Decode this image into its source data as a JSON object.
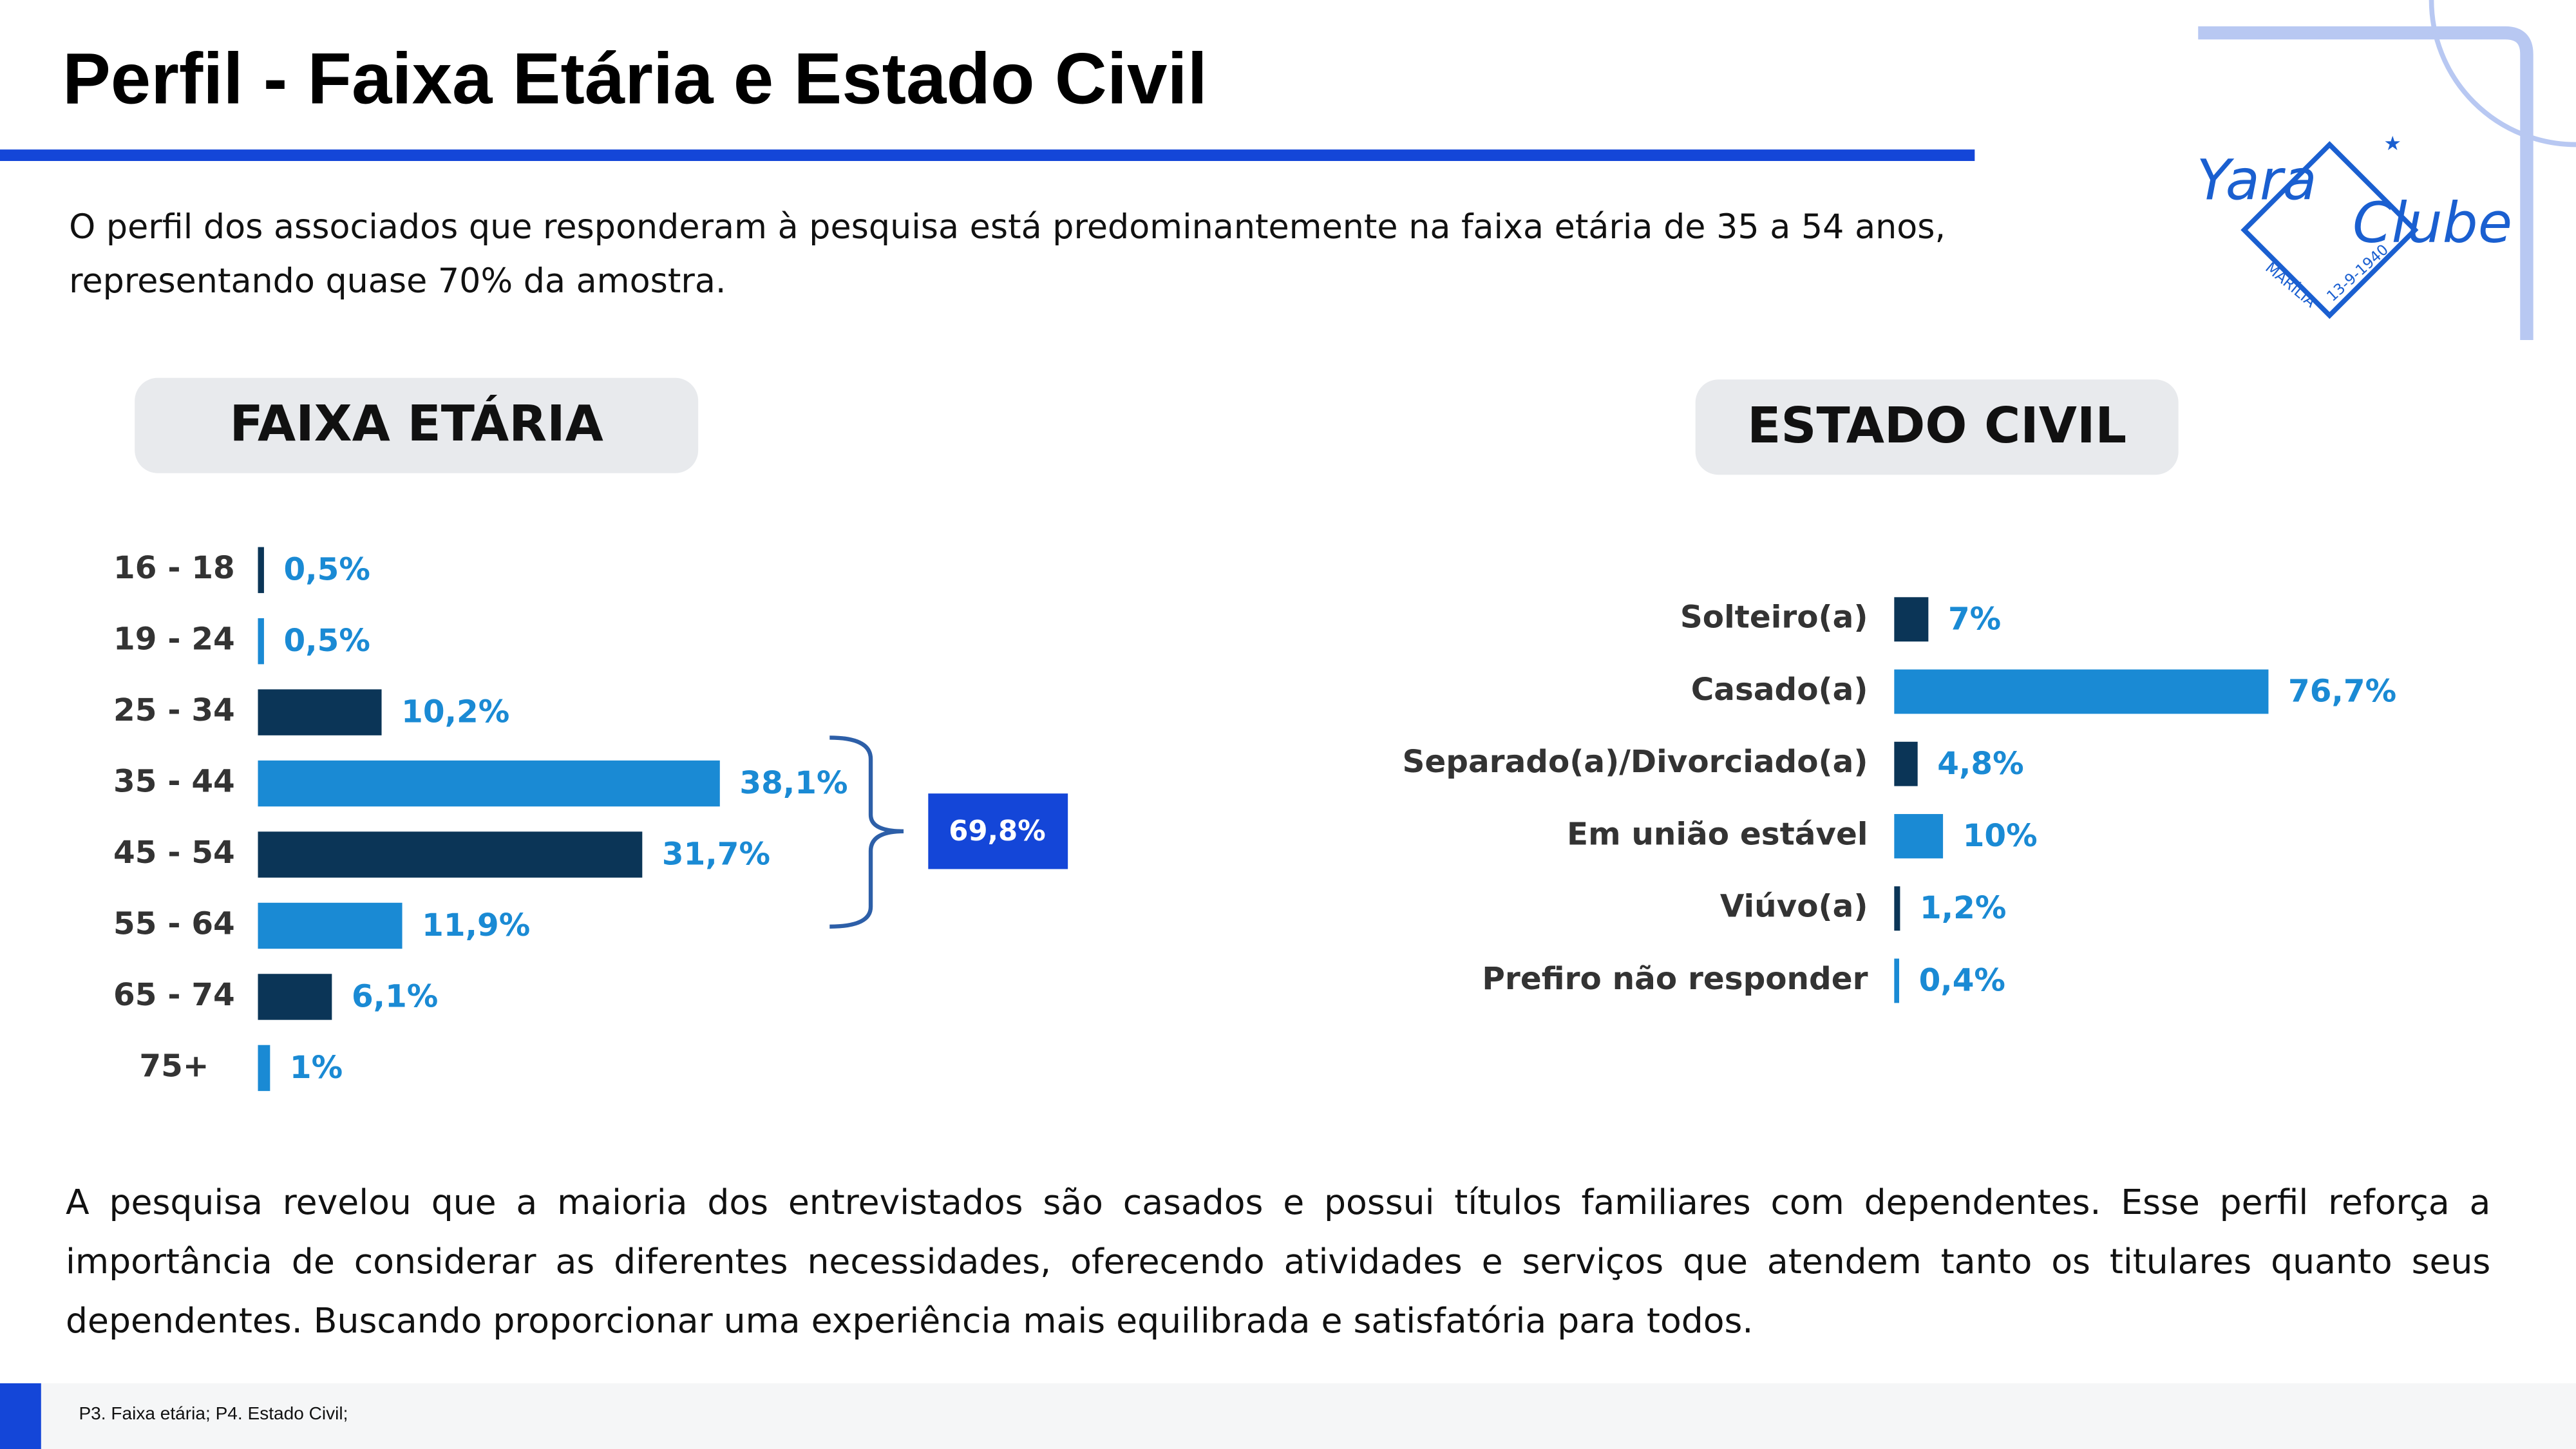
{
  "title": "Perfil - Faixa Etária e Estado Civil",
  "intro": "O perfil dos associados que responderam à pesquisa está predominantemente na faixa etária de 35 a 54 anos, representando quase 70% da amostra.",
  "conclusion": "A pesquisa revelou que a maioria dos entrevistados são casados e possui títulos familiares com dependentes. Esse perfil reforça a importância de considerar as diferentes necessidades, oferecendo atividades e serviços que atendem tanto os titulares quanto seus dependentes. Buscando proporcionar uma experiência mais equilibrada e satisfatória para todos.",
  "source": "P3. Faixa etária; P4. Estado Civil;",
  "logo": {
    "name_1": "Yara",
    "name_2": "Clube",
    "city": "MARÍLIA",
    "date": "13-9-1940"
  },
  "chart_data": [
    {
      "type": "hbar",
      "title": "FAIXA ETÁRIA",
      "categories": [
        "16 - 18",
        "19 - 24",
        "25 - 34",
        "35 - 44",
        "45 - 54",
        "55 - 64",
        "65 - 74",
        "75+"
      ],
      "values": [
        0.5,
        0.5,
        10.2,
        38.1,
        31.7,
        11.9,
        6.1,
        1
      ],
      "value_labels": [
        "0,5%",
        "0,5%",
        "10,2%",
        "38,1%",
        "31,7%",
        "11,9%",
        "6,1%",
        "1%"
      ],
      "colors": [
        "#0b3557",
        "#1a8ad4",
        "#0b3557",
        "#1a8ad4",
        "#0b3557",
        "#1a8ad4",
        "#0b3557",
        "#1a8ad4"
      ],
      "annotation": "69,8%"
    },
    {
      "type": "hbar",
      "title": "ESTADO CIVIL",
      "categories": [
        "Solteiro(a)",
        "Casado(a)",
        "Separado(a)/Divorciado(a)",
        "Em união estável",
        "Viúvo(a)",
        "Prefiro não responder"
      ],
      "values": [
        7,
        76.7,
        4.8,
        10,
        1.2,
        0.4
      ],
      "value_labels": [
        "7%",
        "76,7%",
        "4,8%",
        "10%",
        "1,2%",
        "0,4%"
      ],
      "colors": [
        "#0b3557",
        "#1a8ad4",
        "#0b3557",
        "#1a8ad4",
        "#0b3557",
        "#1a8ad4"
      ]
    }
  ]
}
